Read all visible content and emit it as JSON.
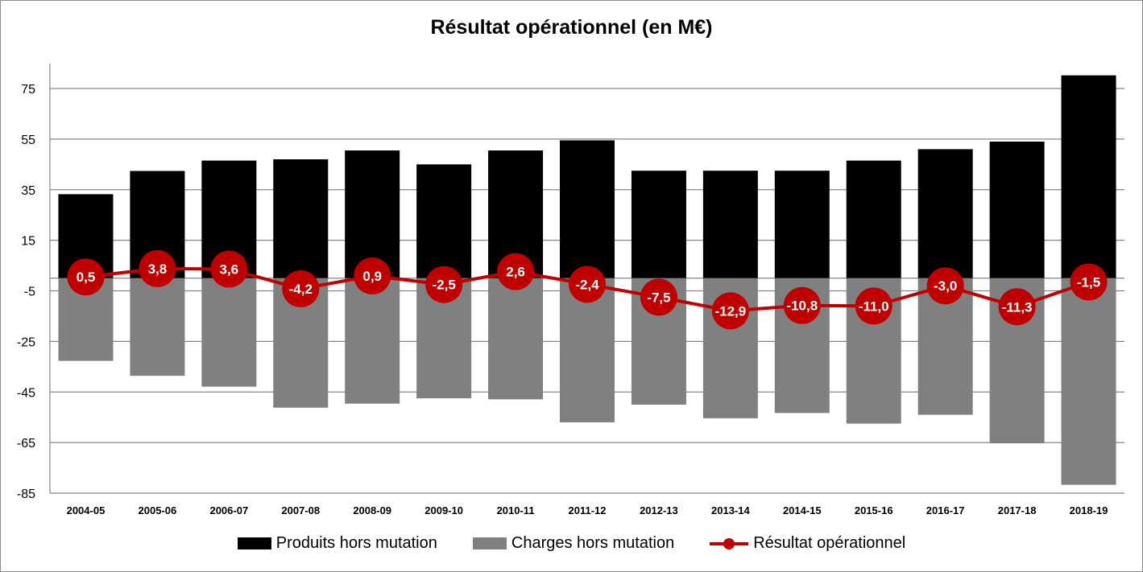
{
  "chart_data": {
    "type": "bar",
    "title": "Résultat opérationnel (en M€)",
    "categories": [
      "2004-05",
      "2005-06",
      "2006-07",
      "2007-08",
      "2008-09",
      "2009-10",
      "2010-11",
      "2011-12",
      "2012-13",
      "2013-14",
      "2014-15",
      "2015-16",
      "2016-17",
      "2017-18",
      "2018-19"
    ],
    "ylim": [
      -85,
      85
    ],
    "yticks": [
      "75",
      "55",
      "35",
      "15",
      "-5",
      "-25",
      "-45",
      "-65",
      "-85"
    ],
    "grid": true,
    "legend_position": "bottom",
    "series": [
      {
        "name": "Produits hors mutation",
        "type": "bar",
        "color": "#000000",
        "values": [
          33.2,
          42.4,
          46.5,
          47.0,
          50.5,
          45.0,
          50.5,
          54.5,
          42.5,
          42.5,
          42.5,
          46.5,
          51.0,
          54.0,
          80.2
        ]
      },
      {
        "name": "Charges hors mutation",
        "type": "bar",
        "color": "#808080",
        "values": [
          -32.7,
          -38.6,
          -42.9,
          -51.2,
          -49.6,
          -47.5,
          -47.9,
          -57.0,
          -50.0,
          -55.4,
          -53.3,
          -57.5,
          -54.0,
          -65.3,
          -81.7
        ]
      },
      {
        "name": "Résultat opérationnel",
        "type": "line",
        "color": "#c00000",
        "values": [
          0.5,
          3.8,
          3.6,
          -4.2,
          0.9,
          -2.5,
          2.6,
          -2.4,
          -7.5,
          -12.9,
          -10.8,
          -11.0,
          -3.0,
          -11.3,
          -1.5
        ],
        "labels": [
          "0,5",
          "3,8",
          "3,6",
          "-4,2",
          "0,9",
          "-2,5",
          "2,6",
          "-2,4",
          "-7,5",
          "-12,9",
          "-10,8",
          "-11,0",
          "-3,0",
          "-11,3",
          "-1,5"
        ]
      }
    ]
  }
}
